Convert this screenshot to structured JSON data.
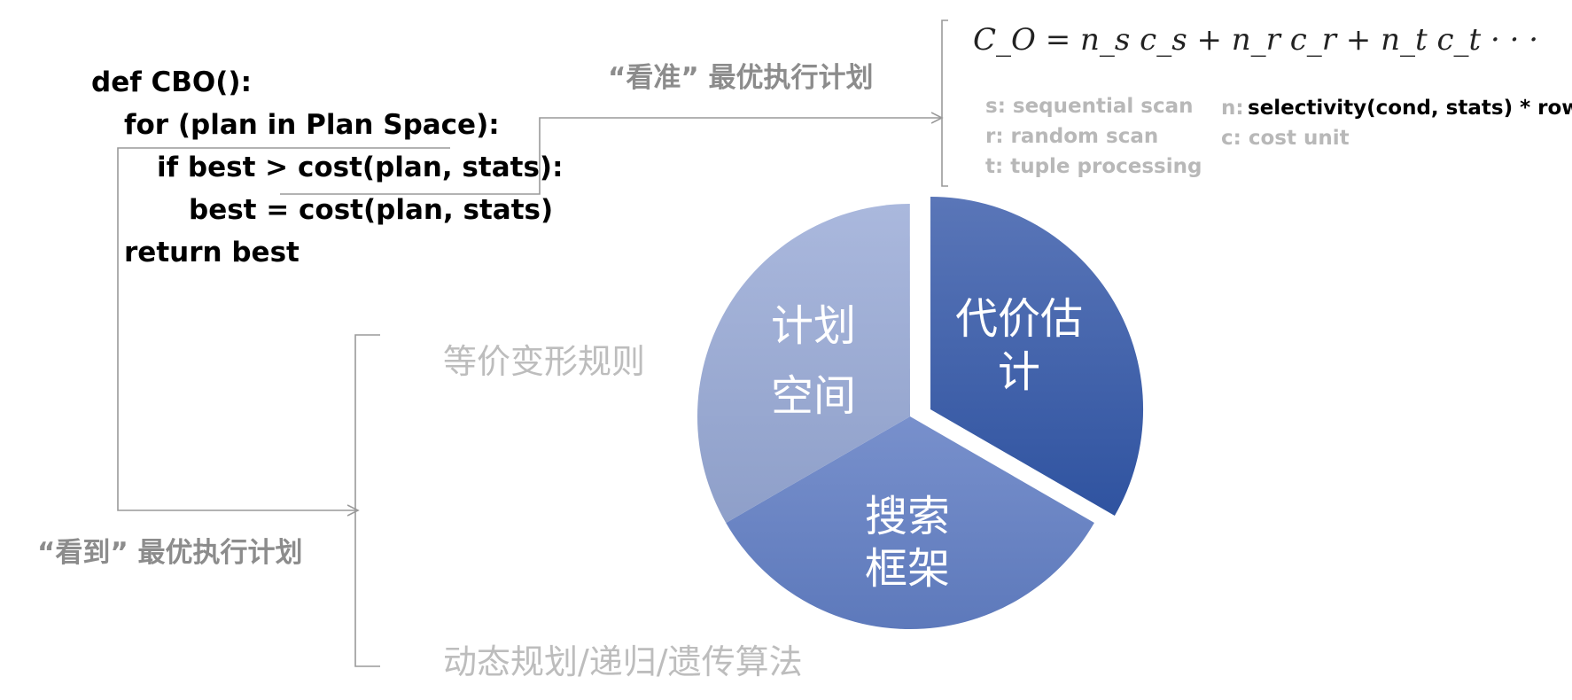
{
  "code": {
    "line1": "def CBO():",
    "line2": "for (plan in Plan Space):",
    "line3": "if best > cost(plan, stats):",
    "line4": "best = cost(plan, stats)",
    "line5": "return best"
  },
  "labels": {
    "see_accurately": "“看准”  最优执行计划",
    "see": "“看到”  最优执行计划",
    "equivalence_rules": "等价变形规则",
    "search_algorithms": "动态规划/递归/遗传算法"
  },
  "formula": {
    "text": "C_O = n_s c_s + n_r c_r + n_t c_t  · · ·"
  },
  "legend": {
    "s": "s: sequential scan",
    "r": "r: random scan",
    "t": "t: tuple processing",
    "n_prefix": "n:",
    "n_value": "selectivity(cond, stats) * rows",
    "c": "c:  cost unit"
  },
  "pie": {
    "segments": [
      {
        "label_line1": "代价估",
        "label_line2": "计",
        "share": 0.3333,
        "color": "#3f5fa8"
      },
      {
        "label_line1": "搜索",
        "label_line2": "框架",
        "share": 0.3333,
        "color": "#6d86c4"
      },
      {
        "label_line1": "计划",
        "label_line2": "空间",
        "share": 0.3333,
        "color": "#a3b2d9"
      }
    ]
  }
}
